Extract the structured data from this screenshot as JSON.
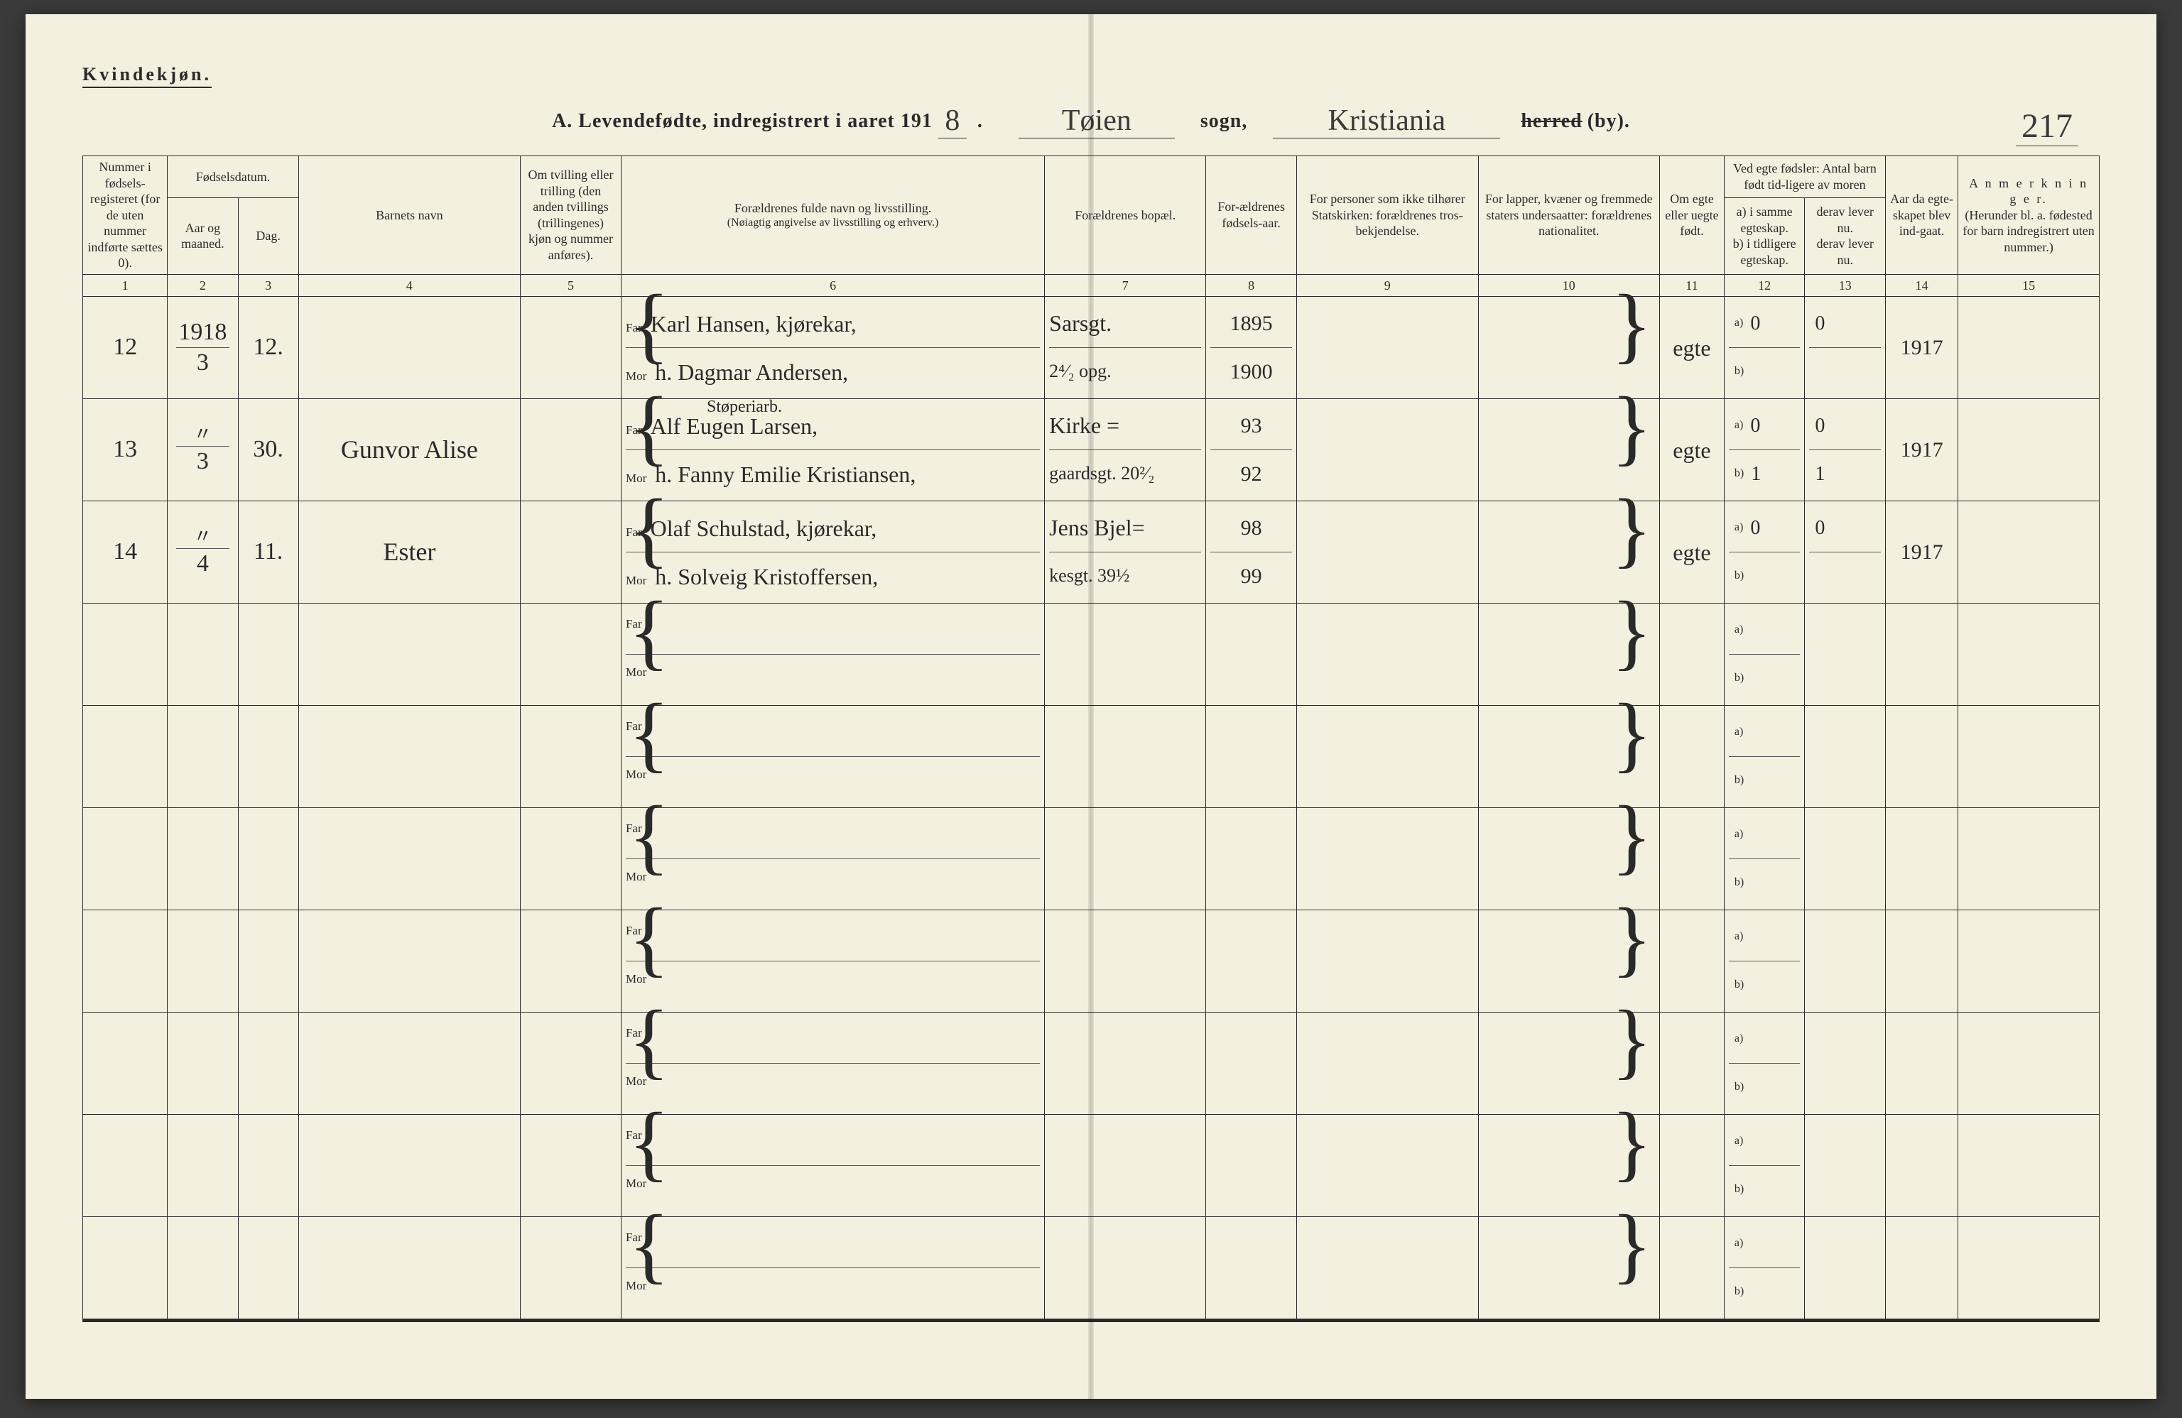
{
  "header": {
    "kvind": "Kvindekjøn.",
    "title_prefix": "A. Levendefødte, indregistrert i aaret 191",
    "year_suffix": "8",
    "sogn_hand": "Tøien",
    "sogn_label": "sogn,",
    "herred_hand": "Kristiania",
    "herred_strike": "herred",
    "herred_by": "(by).",
    "page_number": "217"
  },
  "columns": {
    "c1": "Nummer i fødsels-registeret (for de uten nummer indførte sættes 0).",
    "c2_top": "Fødselsdatum.",
    "c2a": "Aar og maaned.",
    "c2b": "Dag.",
    "c4": "Barnets navn",
    "c5": "Om tvilling eller trilling (den anden tvillings (trillingenes) kjøn og nummer anføres).",
    "c6a": "Forældrenes fulde navn og livsstilling.",
    "c6b": "(Nøiagtig angivelse av livsstilling og erhverv.)",
    "c7": "Forældrenes bopæl.",
    "c8": "For-ældrenes fødsels-aar.",
    "c9": "For personer som ikke tilhører Statskirken: forældrenes tros-bekjendelse.",
    "c10": "For lapper, kvæner og fremmede staters undersaatter: forældrenes nationalitet.",
    "c11": "Om egte eller uegte født.",
    "c12_top": "Ved egte fødsler: Antal barn født tid-ligere av moren",
    "c12a": "a) i samme egteskap.",
    "c12b": "b) i tidligere egteskap.",
    "c13a": "derav lever nu.",
    "c13b": "derav lever nu.",
    "c14": "Aar da egte-skapet blev ind-gaat.",
    "c15a": "A n m e r k n i n g e r.",
    "c15b": "(Herunder bl. a. fødested for barn indregistrert uten nummer.)"
  },
  "colnums": [
    "1",
    "2",
    "3",
    "4",
    "5",
    "6",
    "7",
    "8",
    "9",
    "10",
    "11",
    "12",
    "13",
    "14",
    "15"
  ],
  "far_label": "Far",
  "mor_label": "Mor",
  "a_label": "a)",
  "b_label": "b)",
  "rows": [
    {
      "num": "12",
      "year": "1918",
      "month": "3",
      "day": "12.",
      "child": "",
      "far": "Karl Hansen, kjørekar,",
      "mor": "h. Dagmar Andersen,",
      "bopel_far": "Sarsgt.",
      "bopel_mor": "2⁴⁄₂ opg.",
      "year_far": "1895",
      "year_mor": "1900",
      "egte": "egte",
      "c12a": "0",
      "c12b": "",
      "c13a": "0",
      "c13b": "",
      "c14": "1917"
    },
    {
      "num": "13",
      "year": "〃",
      "month": "3",
      "day": "30.",
      "child": "Gunvor Alise",
      "far_pre": "Støperiarb.",
      "far": "Alf Eugen Larsen,",
      "mor": "h. Fanny Emilie Kristiansen,",
      "bopel_far": "Kirke =",
      "bopel_mor": "gaardsgt. 20²⁄₂",
      "year_far": "93",
      "year_mor": "92",
      "egte": "egte",
      "c12a": "0",
      "c12b": "1",
      "c13a": "0",
      "c13b": "1",
      "c14": "1917"
    },
    {
      "num": "14",
      "year": "〃",
      "month": "4",
      "day": "11.",
      "child": "Ester",
      "far": "Olaf Schulstad, kjørekar,",
      "mor": "h. Solveig Kristoffersen,",
      "bopel_far": "Jens Bjel=",
      "bopel_mor": "kesgt. 39½",
      "year_far": "98",
      "year_mor": "99",
      "egte": "egte",
      "c12a": "0",
      "c12b": "",
      "c13a": "0",
      "c13b": "",
      "c14": "1917"
    },
    {
      "blank": true
    },
    {
      "blank": true
    },
    {
      "blank": true
    },
    {
      "blank": true
    },
    {
      "blank": true
    },
    {
      "blank": true
    },
    {
      "blank": true
    }
  ],
  "colors": {
    "paper": "#f4f0e0",
    "ink": "#2a2a2a",
    "bg": "#3a3a3a"
  }
}
